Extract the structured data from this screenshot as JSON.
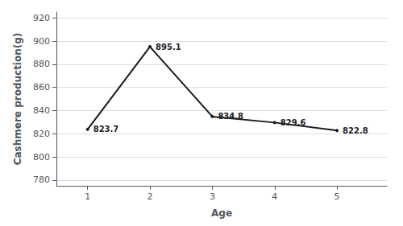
{
  "chart_data": {
    "type": "line",
    "x": [
      1,
      2,
      3,
      4,
      5
    ],
    "values": [
      823.7,
      895.1,
      834.8,
      829.6,
      822.8
    ],
    "color": "#1a1a1a",
    "xlabel": "Age",
    "ylabel": "Cashmere production(g)",
    "xlim": [
      0.5,
      5.8
    ],
    "xticks": [
      1,
      2,
      3,
      4,
      5
    ],
    "ylim": [
      775,
      925
    ],
    "yticks": [
      780,
      800,
      820,
      840,
      860,
      880,
      900,
      920
    ],
    "grid": "y",
    "data_labels": true
  }
}
